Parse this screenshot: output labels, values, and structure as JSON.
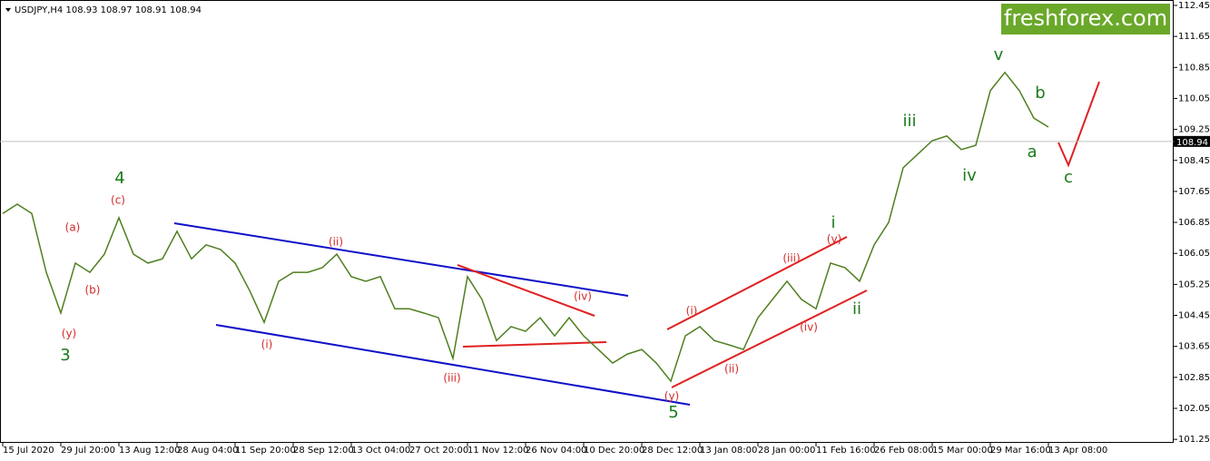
{
  "chart_data": {
    "type": "line",
    "symbol_header": "USDJPY,H4  108.93 108.97 108.91 108.94",
    "watermark": "freshforex.com",
    "categories": [
      "15 Jul 2020",
      null,
      null,
      null,
      "29 Jul 20:00",
      null,
      null,
      null,
      "13 Aug 12:00",
      null,
      null,
      null,
      "28 Aug 04:00",
      null,
      null,
      null,
      "11 Sep 20:00",
      null,
      null,
      null,
      "28 Sep 12:00",
      null,
      null,
      null,
      "13 Oct 04:00",
      null,
      null,
      null,
      "27 Oct 20:00",
      null,
      null,
      null,
      "11 Nov 12:00",
      null,
      null,
      null,
      "26 Nov 04:00",
      null,
      null,
      null,
      "10 Dec 20:00",
      null,
      null,
      null,
      "28 Dec 12:00",
      null,
      null,
      null,
      "13 Jan 08:00",
      null,
      null,
      null,
      "28 Jan 00:00",
      null,
      null,
      null,
      "11 Feb 16:00",
      null,
      null,
      null,
      "26 Feb 08:00",
      null,
      null,
      null,
      "15 Mar 00:00",
      null,
      null,
      null,
      "29 Mar 16:00",
      null,
      null,
      null,
      "13 Apr 08:00"
    ],
    "series": [
      {
        "name": "USDJPY",
        "color": "#4f7f1f",
        "values": [
          107.08,
          107.32,
          107.08,
          105.56,
          104.51,
          105.8,
          105.56,
          106.03,
          106.97,
          106.03,
          105.8,
          105.91,
          106.62,
          105.91,
          106.27,
          106.15,
          105.8,
          105.09,
          104.27,
          105.33,
          105.56,
          105.56,
          105.68,
          106.03,
          105.45,
          105.33,
          105.45,
          104.62,
          104.62,
          104.51,
          104.39,
          103.34,
          105.45,
          104.86,
          103.8,
          104.16,
          104.04,
          104.39,
          103.92,
          104.39,
          103.92,
          103.57,
          103.22,
          103.45,
          103.57,
          103.22,
          102.75,
          103.92,
          104.16,
          103.8,
          103.69,
          103.57,
          104.39,
          104.86,
          105.33,
          104.86,
          104.62,
          105.8,
          105.68,
          105.33,
          106.27,
          106.85,
          108.26,
          108.61,
          108.96,
          109.08,
          108.73,
          108.84,
          110.25,
          110.72,
          110.25,
          109.54,
          109.31
        ]
      }
    ],
    "current_price": 108.94,
    "ylim": [
      101.16,
      112.59
    ],
    "yticks": [
      112.45,
      111.65,
      110.85,
      110.05,
      109.25,
      108.45,
      107.65,
      106.85,
      106.05,
      105.25,
      104.45,
      103.65,
      102.85,
      102.05,
      101.25
    ],
    "annotations": [
      {
        "text": "3",
        "color": "#1a7a1a"
      },
      {
        "text": "(y)",
        "color": "#d42a2a"
      },
      {
        "text": "(a)",
        "color": "#d42a2a"
      },
      {
        "text": "(b)",
        "color": "#d42a2a"
      },
      {
        "text": "(c)",
        "color": "#d42a2a"
      },
      {
        "text": "4",
        "color": "#1a7a1a"
      },
      {
        "text": "(i)",
        "color": "#d42a2a"
      },
      {
        "text": "(ii)",
        "color": "#d42a2a"
      },
      {
        "text": "(iii)",
        "color": "#d42a2a"
      },
      {
        "text": "(iv)",
        "color": "#d42a2a"
      },
      {
        "text": "5",
        "color": "#1a7a1a"
      },
      {
        "text": "(y)",
        "color": "#d42a2a"
      },
      {
        "text": "(i)",
        "color": "#d42a2a"
      },
      {
        "text": "(ii)",
        "color": "#d42a2a"
      },
      {
        "text": "(iii)",
        "color": "#d42a2a"
      },
      {
        "text": "(iv)",
        "color": "#d42a2a"
      },
      {
        "text": "(v)",
        "color": "#d42a2a"
      },
      {
        "text": "i",
        "color": "#1a7a1a"
      },
      {
        "text": "ii",
        "color": "#1a7a1a"
      },
      {
        "text": "iii",
        "color": "#1a7a1a"
      },
      {
        "text": "iv",
        "color": "#1a7a1a"
      },
      {
        "text": "v",
        "color": "#1a7a1a"
      },
      {
        "text": "b",
        "color": "#1a7a1a"
      },
      {
        "text": "a",
        "color": "#1a7a1a"
      },
      {
        "text": "c",
        "color": "#1a7a1a"
      }
    ]
  }
}
